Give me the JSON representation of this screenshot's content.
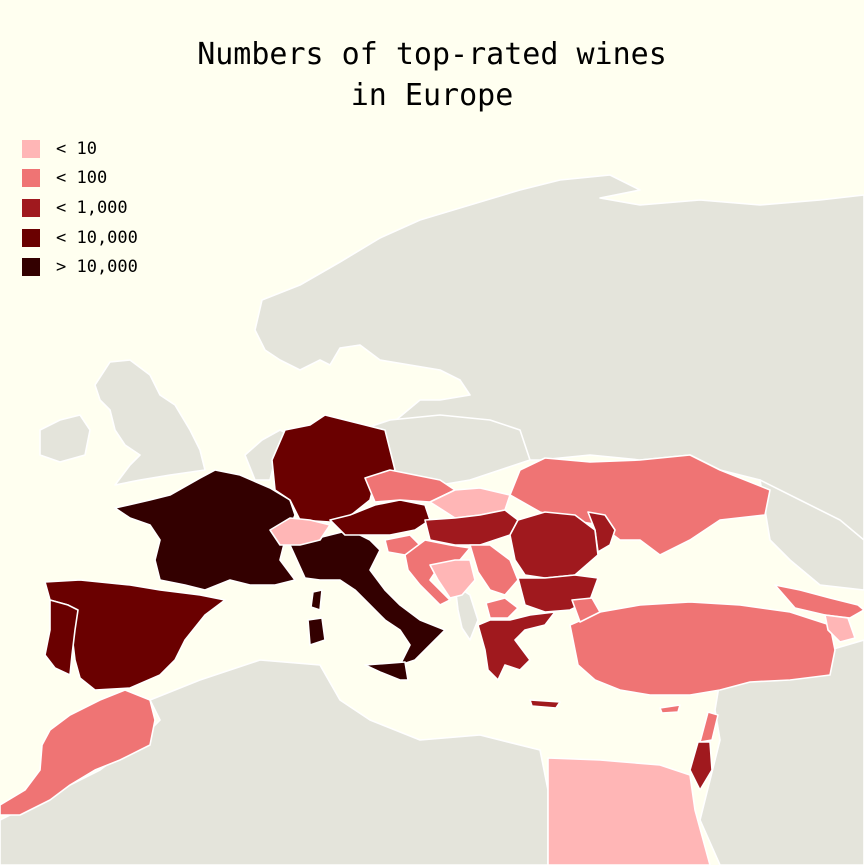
{
  "title": {
    "line1": "Numbers of top-rated wines",
    "line2": "in Europe"
  },
  "legend": [
    {
      "label": "< 10",
      "color": "#ffb6b6"
    },
    {
      "label": "< 100",
      "color": "#ef7474"
    },
    {
      "label": "< 1,000",
      "color": "#a0191e"
    },
    {
      "label": "< 10,000",
      "color": "#6a0000"
    },
    {
      "label": "> 10,000",
      "color": "#330000"
    }
  ],
  "colors": {
    "background": "#fffff0",
    "land": "#e4e4db",
    "border": "#ffffff"
  },
  "countries": [
    {
      "name": "France",
      "class": "> 10,000",
      "color": "#330000"
    },
    {
      "name": "Italy",
      "class": "> 10,000",
      "color": "#330000"
    },
    {
      "name": "Spain",
      "class": "< 10,000",
      "color": "#6a0000"
    },
    {
      "name": "Portugal",
      "class": "< 10,000",
      "color": "#6a0000"
    },
    {
      "name": "Germany",
      "class": "< 10,000",
      "color": "#6a0000"
    },
    {
      "name": "Austria",
      "class": "< 10,000",
      "color": "#6a0000"
    },
    {
      "name": "Hungary",
      "class": "< 1,000",
      "color": "#a0191e"
    },
    {
      "name": "Romania",
      "class": "< 1,000",
      "color": "#a0191e"
    },
    {
      "name": "Bulgaria",
      "class": "< 1,000",
      "color": "#a0191e"
    },
    {
      "name": "Greece",
      "class": "< 1,000",
      "color": "#a0191e"
    },
    {
      "name": "Moldova",
      "class": "< 1,000",
      "color": "#a0191e"
    },
    {
      "name": "Israel",
      "class": "< 1,000",
      "color": "#a0191e"
    },
    {
      "name": "Czechia",
      "class": "< 100",
      "color": "#ef7474"
    },
    {
      "name": "Ukraine",
      "class": "< 100",
      "color": "#ef7474"
    },
    {
      "name": "Slovenia",
      "class": "< 100",
      "color": "#ef7474"
    },
    {
      "name": "Croatia",
      "class": "< 100",
      "color": "#ef7474"
    },
    {
      "name": "Serbia",
      "class": "< 100",
      "color": "#ef7474"
    },
    {
      "name": "North Macedonia",
      "class": "< 100",
      "color": "#ef7474"
    },
    {
      "name": "Turkey",
      "class": "< 100",
      "color": "#ef7474"
    },
    {
      "name": "Georgia",
      "class": "< 100",
      "color": "#ef7474"
    },
    {
      "name": "Lebanon",
      "class": "< 100",
      "color": "#ef7474"
    },
    {
      "name": "Morocco",
      "class": "< 100",
      "color": "#ef7474"
    },
    {
      "name": "Switzerland",
      "class": "< 10",
      "color": "#ffb6b6"
    },
    {
      "name": "Slovakia",
      "class": "< 10",
      "color": "#ffb6b6"
    },
    {
      "name": "Bosnia and Herzegovina",
      "class": "< 10",
      "color": "#ffb6b6"
    },
    {
      "name": "Armenia",
      "class": "< 10",
      "color": "#ffb6b6"
    },
    {
      "name": "Egypt",
      "class": "< 10",
      "color": "#ffb6b6"
    }
  ]
}
